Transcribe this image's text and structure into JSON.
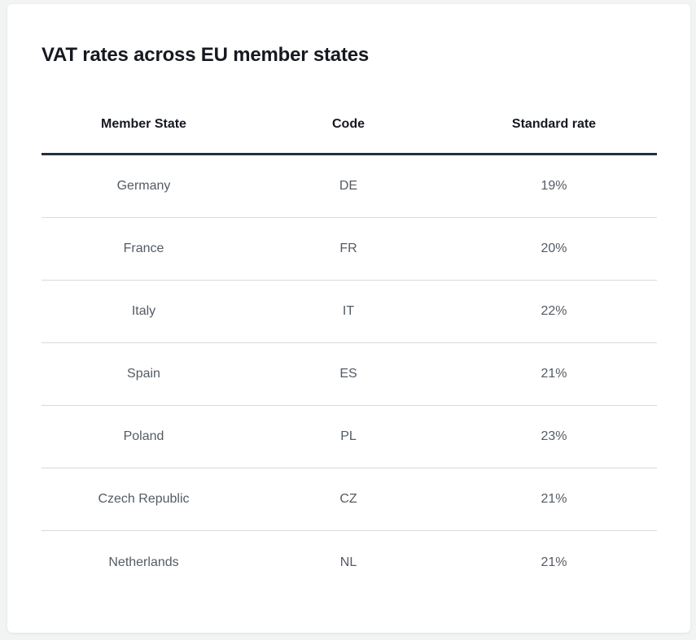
{
  "title": "VAT rates across EU member states",
  "table": {
    "headers": [
      "Member State",
      "Code",
      "Standard rate"
    ],
    "rows": [
      [
        "Germany",
        "DE",
        "19%"
      ],
      [
        "France",
        "FR",
        "20%"
      ],
      [
        "Italy",
        "IT",
        "22%"
      ],
      [
        "Spain",
        "ES",
        "21%"
      ],
      [
        "Poland",
        "PL",
        "23%"
      ],
      [
        "Czech Republic",
        "CZ",
        "21%"
      ],
      [
        "Netherlands",
        "NL",
        "21%"
      ]
    ]
  },
  "colors": {
    "background": "#f2f3f3",
    "card": "#ffffff",
    "heading_text": "#16191f",
    "body_text": "#545b64",
    "header_rule": "#232f3e",
    "row_divider": "#d5dbdb"
  }
}
